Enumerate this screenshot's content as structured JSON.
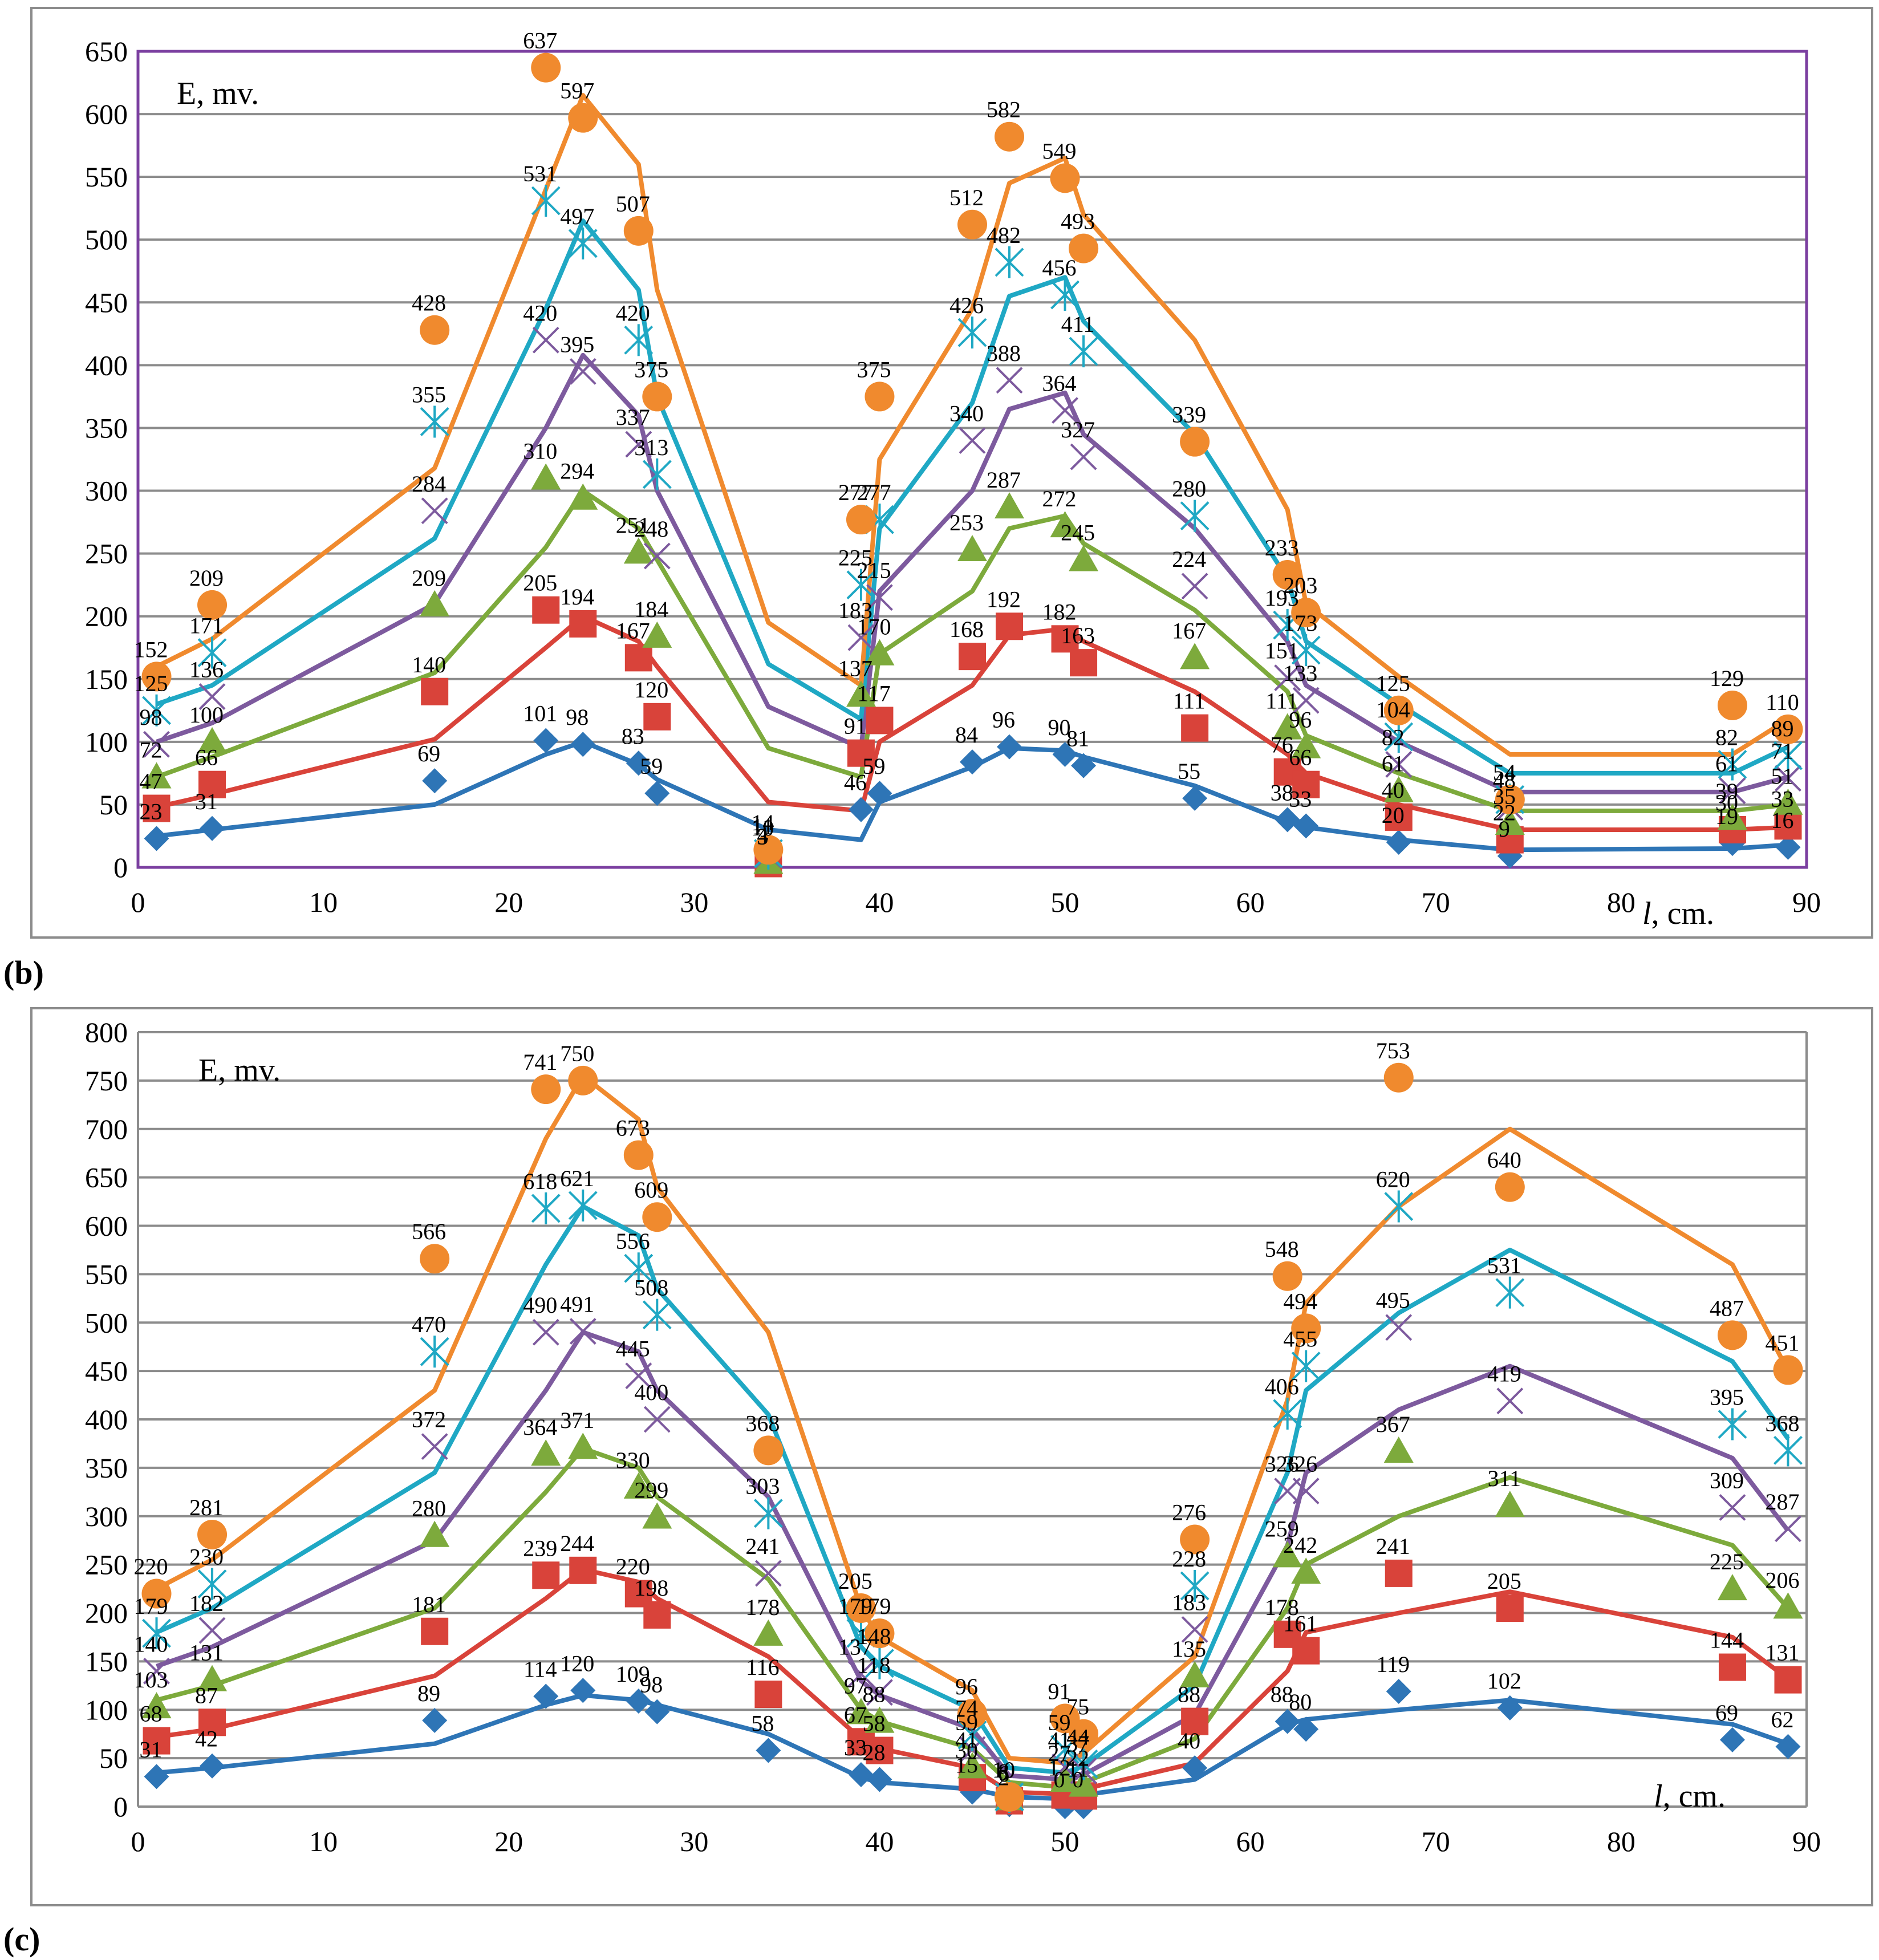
{
  "colors": {
    "s1": "#2E75B6",
    "s2": "#D9433A",
    "s3": "#7DAA3C",
    "s4": "#7D5A9E",
    "s5": "#1FA8C4",
    "s6": "#F08A2E",
    "grid": "#8C8C8C",
    "plotBorderB": "#7B3FA0"
  },
  "chart_data": [
    {
      "id": "b",
      "panel_label": "(b)",
      "label_letter": "b",
      "type": "line",
      "ylabel": "E, mv.",
      "xlabel_italic": "l",
      "xlabel_rest": ", cm.",
      "xlim": [
        0,
        90
      ],
      "ylim": [
        0,
        650
      ],
      "xticks": [
        0,
        10,
        20,
        30,
        40,
        50,
        60,
        70,
        80,
        90
      ],
      "yticks": [
        0,
        50,
        100,
        150,
        200,
        250,
        300,
        350,
        400,
        450,
        500,
        550,
        600,
        650
      ],
      "x": [
        1,
        4,
        16,
        22,
        24,
        27,
        28,
        34,
        39,
        40,
        45,
        47,
        50,
        51,
        57,
        62,
        63,
        68,
        74,
        86,
        89
      ],
      "series": [
        {
          "name": "series-1",
          "marker": "diamond",
          "color_key": "s1",
          "points": [
            23,
            31,
            69,
            101,
            98,
            83,
            59,
            3,
            46,
            59,
            84,
            96,
            90,
            81,
            55,
            38,
            33,
            20,
            9,
            19,
            16
          ],
          "line": [
            25,
            30,
            50,
            90,
            100,
            82,
            70,
            30,
            22,
            52,
            80,
            95,
            93,
            88,
            65,
            36,
            32,
            22,
            14,
            15,
            18
          ]
        },
        {
          "name": "series-2",
          "marker": "square",
          "color_key": "s2",
          "points": [
            47,
            66,
            140,
            205,
            194,
            167,
            120,
            3,
            91,
            117,
            168,
            192,
            182,
            163,
            111,
            76,
            66,
            40,
            22,
            30,
            33
          ],
          "line": [
            48,
            58,
            102,
            175,
            200,
            180,
            160,
            52,
            45,
            100,
            145,
            185,
            190,
            180,
            140,
            90,
            75,
            50,
            30,
            30,
            32
          ]
        },
        {
          "name": "series-3",
          "marker": "triangle",
          "color_key": "s3",
          "points": [
            72,
            100,
            209,
            310,
            294,
            251,
            184,
            4,
            137,
            170,
            253,
            287,
            272,
            245,
            167,
            111,
            96,
            61,
            35,
            39,
            51
          ],
          "line": [
            72,
            88,
            155,
            255,
            300,
            270,
            245,
            95,
            72,
            170,
            220,
            270,
            280,
            258,
            205,
            140,
            105,
            75,
            45,
            45,
            50
          ]
        },
        {
          "name": "series-4",
          "marker": "x",
          "color_key": "s4",
          "points": [
            98,
            136,
            284,
            420,
            395,
            337,
            248,
            10,
            183,
            215,
            340,
            388,
            364,
            327,
            224,
            151,
            133,
            82,
            48,
            61,
            71
          ],
          "line": [
            100,
            115,
            210,
            350,
            408,
            360,
            300,
            128,
            95,
            220,
            300,
            365,
            378,
            345,
            270,
            180,
            145,
            100,
            60,
            60,
            72
          ]
        },
        {
          "name": "series-5",
          "marker": "star",
          "color_key": "s5",
          "points": [
            125,
            171,
            355,
            531,
            497,
            420,
            313,
            11,
            225,
            277,
            426,
            482,
            456,
            411,
            280,
            193,
            173,
            104,
            54,
            82,
            89
          ],
          "line": [
            130,
            145,
            262,
            445,
            515,
            460,
            375,
            162,
            118,
            270,
            370,
            455,
            470,
            435,
            345,
            230,
            180,
            130,
            75,
            75,
            96
          ]
        },
        {
          "name": "series-6",
          "marker": "circle",
          "color_key": "s6",
          "points": [
            152,
            209,
            428,
            637,
            597,
            507,
            375,
            14,
            277,
            375,
            512,
            582,
            549,
            493,
            339,
            233,
            203,
            125,
            54,
            129,
            110
          ],
          "line": [
            160,
            182,
            318,
            540,
            615,
            560,
            460,
            195,
            145,
            325,
            445,
            545,
            565,
            520,
            420,
            285,
            210,
            152,
            90,
            90,
            118
          ]
        }
      ]
    },
    {
      "id": "c",
      "panel_label": "(c)",
      "label_letter": "c",
      "type": "line",
      "ylabel": "E, mv.",
      "xlabel_italic": "l",
      "xlabel_rest": ", cm.",
      "xlim": [
        0,
        90
      ],
      "ylim": [
        0,
        800
      ],
      "xticks": [
        0,
        10,
        20,
        30,
        40,
        50,
        60,
        70,
        80,
        90
      ],
      "yticks": [
        0,
        50,
        100,
        150,
        200,
        250,
        300,
        350,
        400,
        450,
        500,
        550,
        600,
        650,
        700,
        750,
        800
      ],
      "x": [
        1,
        4,
        16,
        22,
        24,
        27,
        28,
        34,
        39,
        40,
        45,
        47,
        50,
        51,
        57,
        62,
        63,
        68,
        74,
        86,
        89
      ],
      "series": [
        {
          "name": "series-1",
          "marker": "diamond",
          "color_key": "s1",
          "points": [
            31,
            42,
            89,
            114,
            120,
            109,
            98,
            58,
            33,
            28,
            15,
            2,
            0,
            0,
            40,
            88,
            80,
            119,
            102,
            69,
            62
          ],
          "line": [
            35,
            40,
            65,
            105,
            115,
            110,
            105,
            75,
            30,
            25,
            18,
            10,
            8,
            12,
            28,
            85,
            90,
            100,
            110,
            85,
            65
          ]
        },
        {
          "name": "series-2",
          "marker": "square",
          "color_key": "s2",
          "points": [
            68,
            87,
            181,
            239,
            244,
            220,
            198,
            116,
            67,
            58,
            30,
            6,
            12,
            11,
            88,
            178,
            161,
            241,
            205,
            144,
            131
          ],
          "line": [
            72,
            80,
            135,
            215,
            245,
            232,
            215,
            155,
            70,
            60,
            40,
            15,
            13,
            18,
            45,
            140,
            180,
            200,
            222,
            175,
            132
          ]
        },
        {
          "name": "series-3",
          "marker": "triangle",
          "color_key": "s3",
          "points": [
            103,
            131,
            280,
            364,
            371,
            330,
            299,
            178,
            97,
            88,
            41,
            8,
            27,
            22,
            135,
            259,
            242,
            367,
            311,
            225,
            206
          ],
          "line": [
            110,
            125,
            205,
            325,
            370,
            350,
            320,
            235,
            100,
            88,
            60,
            25,
            20,
            25,
            70,
            205,
            250,
            300,
            340,
            270,
            205
          ]
        },
        {
          "name": "series-4",
          "marker": "x",
          "color_key": "s4",
          "points": [
            140,
            182,
            372,
            490,
            491,
            445,
            400,
            241,
            137,
            118,
            59,
            10,
            41,
            37,
            183,
            326,
            326,
            495,
            419,
            309,
            287
          ],
          "line": [
            145,
            165,
            275,
            430,
            490,
            470,
            430,
            320,
            130,
            115,
            80,
            32,
            28,
            33,
            95,
            270,
            345,
            410,
            455,
            360,
            285
          ]
        },
        {
          "name": "series-5",
          "marker": "star",
          "color_key": "s5",
          "points": [
            179,
            230,
            470,
            618,
            621,
            556,
            508,
            303,
            179,
            148,
            74,
            10,
            59,
            44,
            228,
            406,
            455,
            620,
            531,
            395,
            368
          ],
          "line": [
            180,
            205,
            345,
            560,
            620,
            590,
            535,
            405,
            165,
            145,
            100,
            40,
            35,
            42,
            125,
            345,
            430,
            510,
            575,
            460,
            380
          ]
        },
        {
          "name": "series-6",
          "marker": "circle",
          "color_key": "s6",
          "points": [
            220,
            281,
            566,
            741,
            750,
            673,
            609,
            368,
            205,
            179,
            96,
            10,
            91,
            75,
            276,
            548,
            494,
            753,
            640,
            487,
            451
          ],
          "line": [
            225,
            255,
            430,
            690,
            755,
            710,
            640,
            490,
            205,
            175,
            120,
            50,
            45,
            55,
            155,
            420,
            520,
            620,
            700,
            560,
            450
          ]
        }
      ]
    }
  ]
}
